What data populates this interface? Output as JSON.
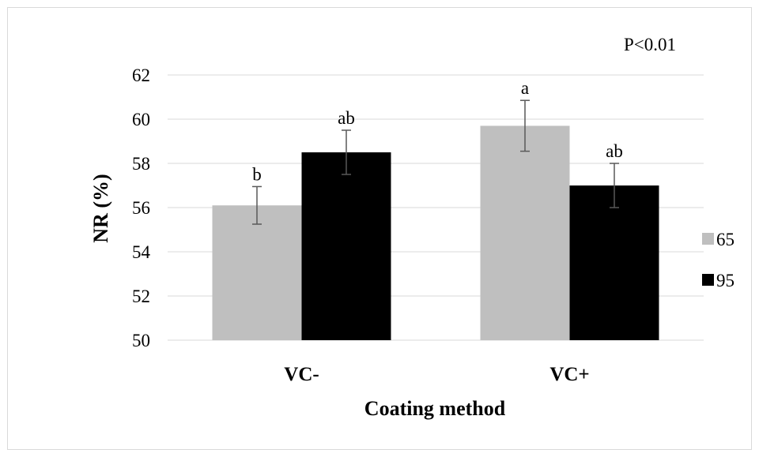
{
  "chart_data": {
    "type": "bar",
    "categories": [
      "VC-",
      "VC+"
    ],
    "xlabel": "Coating method",
    "ylabel": "NR (%)",
    "ylim": [
      50,
      62
    ],
    "yticks": [
      "50",
      "52",
      "54",
      "56",
      "58",
      "60",
      "62"
    ],
    "grid": true,
    "legend_position": "right",
    "annotation": "P<0.01",
    "series": [
      {
        "name": "65",
        "color": "#bfbfbf",
        "values": [
          56.1,
          59.7
        ],
        "errors": [
          0.85,
          1.15
        ],
        "labels": [
          "b",
          "a"
        ]
      },
      {
        "name": "95",
        "color": "#000000",
        "values": [
          58.5,
          57.0
        ],
        "errors": [
          1.0,
          1.0
        ],
        "labels": [
          "ab",
          "ab"
        ]
      }
    ]
  }
}
